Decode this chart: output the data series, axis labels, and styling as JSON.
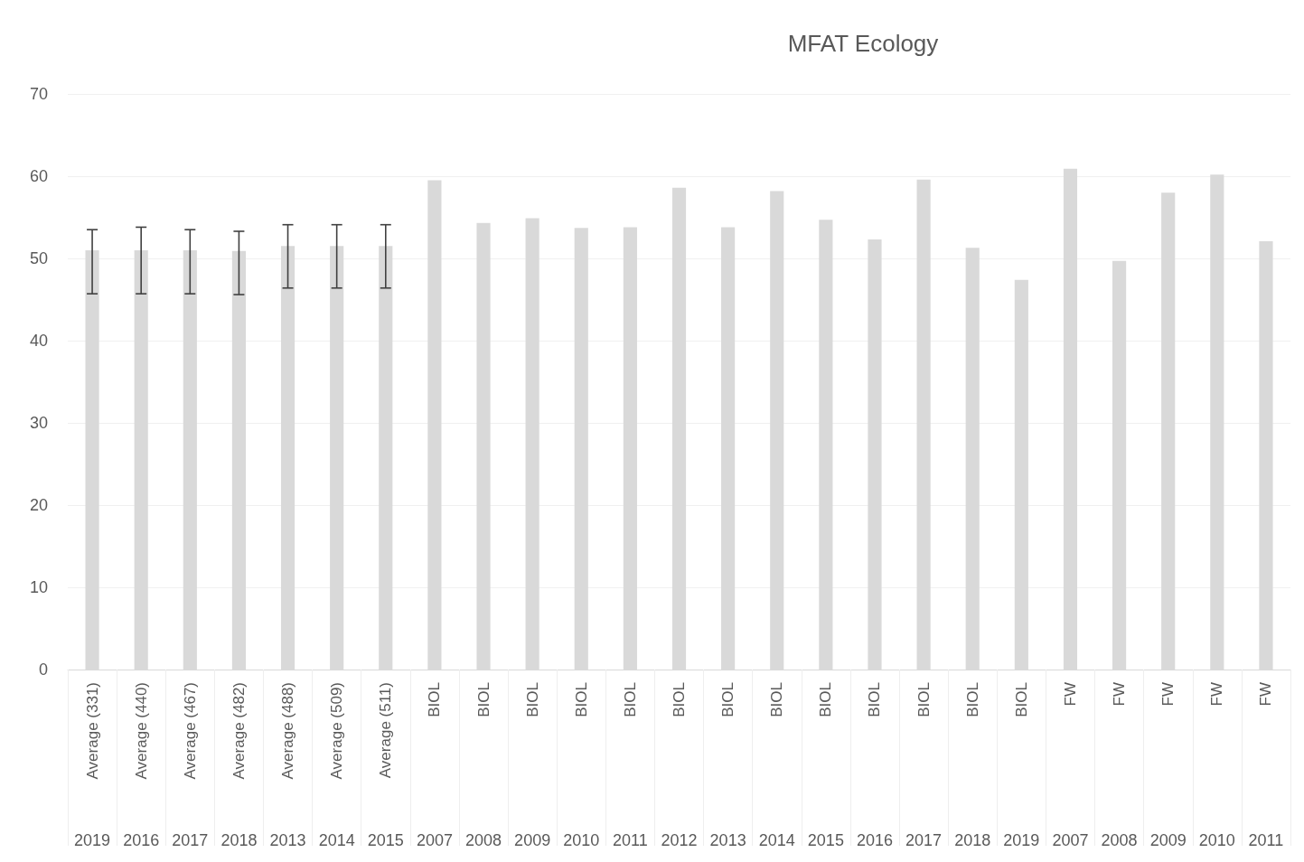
{
  "chart_data": {
    "type": "bar",
    "title": "MFAT Ecology",
    "categories": [
      "Average (331)\n2019",
      "Average (440)\n2016",
      "Average (467)\n2017",
      "Average (482)\n2018",
      "Average (488)\n2013",
      "Average (509)\n2014",
      "Average (511)\n2015",
      "BIOL\n2007",
      "BIOL\n2008",
      "BIOL\n2009",
      "BIOL\n2010",
      "BIOL\n2011",
      "BIOL\n2012",
      "BIOL\n2013",
      "BIOL\n2014",
      "BIOL\n2015",
      "BIOL\n2016",
      "BIOL\n2017",
      "BIOL\n2018",
      "BIOL\n2019",
      "FW\n2007",
      "FW\n2008",
      "FW\n2009",
      "FW\n2010",
      "FW\n2011"
    ],
    "values": [
      51.0,
      51.0,
      51.0,
      50.9,
      51.5,
      51.5,
      51.5,
      59.5,
      54.3,
      54.9,
      53.7,
      53.8,
      58.6,
      53.8,
      58.2,
      54.7,
      52.3,
      59.6,
      51.3,
      47.4,
      60.9,
      49.7,
      58.0,
      60.2,
      52.1
    ],
    "errors": [
      [
        45.7,
        53.5
      ],
      [
        45.7,
        53.8
      ],
      [
        45.7,
        53.5
      ],
      [
        45.6,
        53.3
      ],
      [
        46.4,
        54.1
      ],
      [
        46.4,
        54.1
      ],
      [
        46.4,
        54.1
      ],
      null,
      null,
      null,
      null,
      null,
      null,
      null,
      null,
      null,
      null,
      null,
      null,
      null,
      null,
      null,
      null,
      null,
      null
    ],
    "color": "#d9d9d9",
    "ylim": [
      0,
      70
    ],
    "yticks": [
      0,
      10,
      20,
      30,
      40,
      50,
      60,
      70
    ],
    "grid": "y"
  }
}
